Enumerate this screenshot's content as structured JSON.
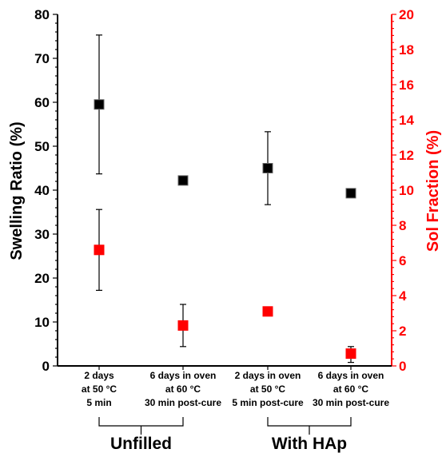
{
  "chart_data": {
    "type": "scatter",
    "left_axis": {
      "label": "Swelling Ratio (%)",
      "ylim": [
        0,
        80
      ],
      "ticks": [
        "0",
        "10",
        "20",
        "30",
        "40",
        "50",
        "60",
        "70",
        "80"
      ],
      "color": "#000000"
    },
    "right_axis": {
      "label": "Sol Fraction (%)",
      "ylim": [
        0,
        20
      ],
      "ticks": [
        "0",
        "2",
        "4",
        "6",
        "8",
        "10",
        "12",
        "14",
        "16",
        "18",
        "20"
      ],
      "color": "#ff0000"
    },
    "categories": [
      [
        "2 days",
        "at 50 °C",
        "5 min"
      ],
      [
        "6 days in oven",
        "at 60 °C",
        "30 min post-cure"
      ],
      [
        "2 days in oven",
        "at 50 °C",
        "5 min post-cure"
      ],
      [
        "6 days in oven",
        "at 60 °C",
        "30 min post-cure"
      ]
    ],
    "groups": [
      {
        "label": "Unfilled",
        "categories": [
          0,
          1
        ]
      },
      {
        "label": "With HAp",
        "categories": [
          2,
          3
        ]
      }
    ],
    "series": [
      {
        "axis": "left",
        "color": "#000000",
        "values": [
          59.5,
          42.2,
          45.0,
          39.3
        ],
        "error_low": [
          43.7,
          42.2,
          36.7,
          39.3
        ],
        "error_high": [
          75.3,
          42.2,
          53.3,
          39.3
        ]
      },
      {
        "axis": "right",
        "color": "#ff0000",
        "values": [
          6.6,
          2.3,
          3.1,
          0.7
        ],
        "error_low": [
          4.3,
          1.1,
          3.1,
          0.2
        ],
        "error_high": [
          8.9,
          3.5,
          3.1,
          1.1
        ]
      }
    ],
    "grid": false,
    "legend": "none"
  }
}
